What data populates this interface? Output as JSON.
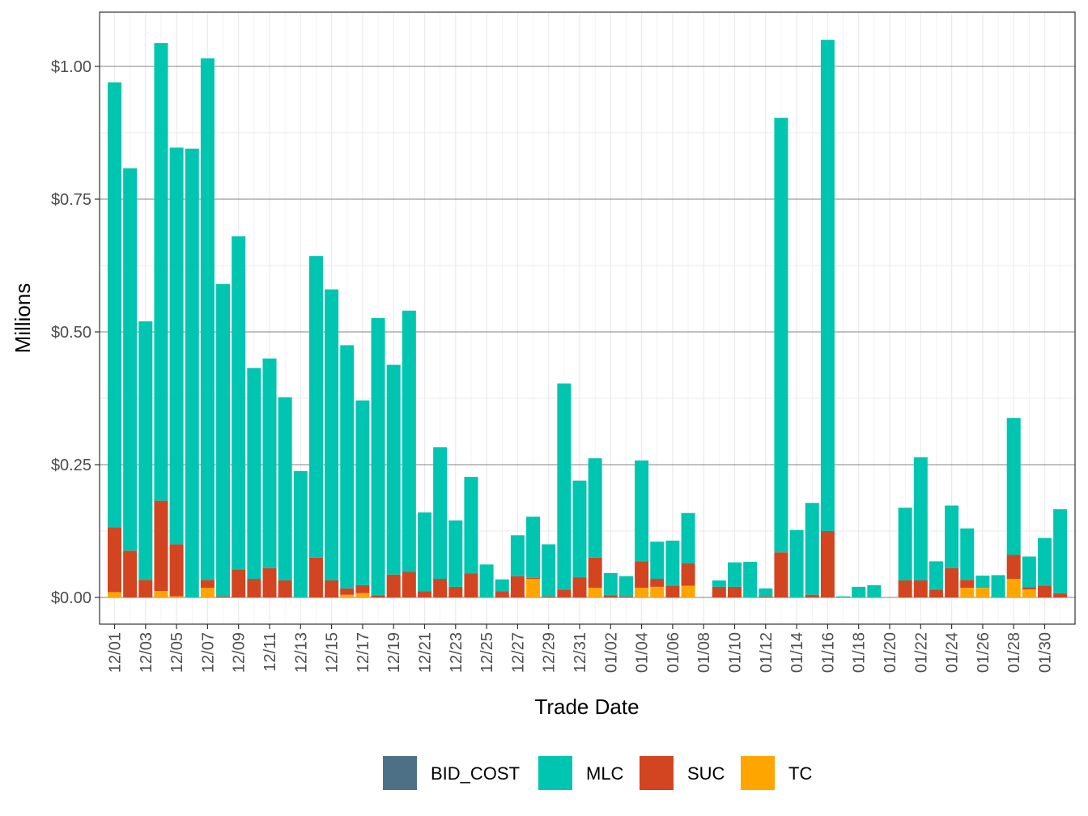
{
  "chart_data": {
    "type": "bar",
    "stacked": true,
    "xlabel": "Trade Date",
    "ylabel": "Millions",
    "ylim": [
      -0.05,
      1.1
    ],
    "y_ticks": [
      0,
      0.25,
      0.5,
      0.75,
      1.0
    ],
    "y_tick_labels": [
      "$0.00",
      "$0.25",
      "$0.50",
      "$0.75",
      "$1.00"
    ],
    "x_tick_labels": [
      "12/01",
      "12/03",
      "12/05",
      "12/07",
      "12/09",
      "12/11",
      "12/13",
      "12/15",
      "12/17",
      "12/19",
      "12/21",
      "12/23",
      "12/25",
      "12/27",
      "12/29",
      "12/31",
      "01/02",
      "01/04",
      "01/06",
      "01/08",
      "01/10",
      "01/12",
      "01/14",
      "01/16",
      "01/18",
      "01/20",
      "01/22",
      "01/24",
      "01/26",
      "01/28",
      "01/30"
    ],
    "categories": [
      "12/01",
      "12/02",
      "12/03",
      "12/04",
      "12/05",
      "12/06",
      "12/07",
      "12/08",
      "12/09",
      "12/10",
      "12/11",
      "12/12",
      "12/13",
      "12/14",
      "12/15",
      "12/16",
      "12/17",
      "12/18",
      "12/19",
      "12/20",
      "12/21",
      "12/22",
      "12/23",
      "12/24",
      "12/25",
      "12/26",
      "12/27",
      "12/28",
      "12/29",
      "12/30",
      "12/31",
      "01/01",
      "01/02",
      "01/03",
      "01/04",
      "01/05",
      "01/06",
      "01/07",
      "01/08",
      "01/09",
      "01/10",
      "01/11",
      "01/12",
      "01/13",
      "01/14",
      "01/15",
      "01/16",
      "01/17",
      "01/18",
      "01/19",
      "01/20",
      "01/21",
      "01/22",
      "01/23",
      "01/24",
      "01/25",
      "01/26",
      "01/27",
      "01/28",
      "01/29",
      "01/30",
      "01/31"
    ],
    "series": [
      {
        "name": "BID_COST",
        "color": "#4e7086",
        "values": [
          0,
          0,
          0,
          0,
          0,
          0,
          0,
          0,
          0,
          0,
          0,
          0,
          0,
          0,
          0,
          0,
          0,
          0,
          0,
          0,
          0,
          0,
          0,
          0,
          0,
          0,
          0,
          0,
          0,
          0,
          0,
          0,
          0,
          0,
          0,
          0,
          0,
          0,
          0,
          0,
          0,
          0,
          0,
          0,
          0,
          0,
          0,
          0,
          0,
          0,
          0,
          0,
          0,
          0,
          0,
          0,
          0,
          0,
          0,
          0,
          0,
          0
        ]
      },
      {
        "name": "TC",
        "color": "#ffa500",
        "values": [
          0.01,
          0,
          0,
          0.012,
          0.002,
          0,
          0.018,
          0,
          0,
          0,
          0,
          0,
          0,
          0,
          0,
          0.005,
          0.008,
          0,
          0,
          0,
          0,
          0,
          0,
          0,
          0,
          0,
          0,
          0.035,
          0,
          0,
          0,
          0.018,
          0,
          0,
          0.018,
          0.02,
          0,
          0.022,
          0,
          0,
          0,
          0,
          0,
          0,
          0,
          0,
          0,
          0,
          0,
          0,
          0,
          0,
          0,
          0,
          0,
          0.018,
          0.018,
          0,
          0.035,
          0.015,
          0,
          0
        ]
      },
      {
        "name": "SUC",
        "color": "#d24520",
        "values": [
          0.122,
          0.088,
          0.033,
          0.17,
          0.098,
          0,
          0.015,
          0.002,
          0.053,
          0.035,
          0.055,
          0.032,
          0,
          0.075,
          0.032,
          0.012,
          0.015,
          0.004,
          0.043,
          0.048,
          0.012,
          0.035,
          0.02,
          0.045,
          0,
          0.012,
          0.04,
          0.002,
          0.002,
          0.015,
          0.038,
          0.057,
          0.004,
          0.002,
          0.05,
          0.015,
          0.022,
          0.042,
          0,
          0.02,
          0.02,
          0,
          0.002,
          0.085,
          0,
          0.005,
          0.125,
          0,
          0,
          0,
          0,
          0.032,
          0.032,
          0.015,
          0.055,
          0.015,
          0,
          0,
          0.045,
          0.004,
          0.022,
          0.008
        ]
      },
      {
        "name": "MLC",
        "color": "#00c5b0",
        "values": [
          0.838,
          0.72,
          0.487,
          0.862,
          0.747,
          0.845,
          0.982,
          0.588,
          0.627,
          0.397,
          0.395,
          0.345,
          0.238,
          0.568,
          0.548,
          0.458,
          0.348,
          0.522,
          0.395,
          0.492,
          0.148,
          0.248,
          0.125,
          0.182,
          0.062,
          0.022,
          0.077,
          0.115,
          0.098,
          0.388,
          0.182,
          0.187,
          0.042,
          0.038,
          0.19,
          0.07,
          0.085,
          0.095,
          0,
          0.012,
          0.046,
          0.067,
          0.015,
          0.818,
          0.127,
          0.173,
          0.925,
          0.002,
          0.02,
          0.023,
          0,
          0.137,
          0.232,
          0.053,
          0.118,
          0.097,
          0.023,
          0.042,
          0.258,
          0.058,
          0.09,
          0.158
        ]
      }
    ],
    "legend": {
      "position": "bottom",
      "entries": [
        "BID_COST",
        "MLC",
        "SUC",
        "TC"
      ]
    },
    "grid": true
  }
}
